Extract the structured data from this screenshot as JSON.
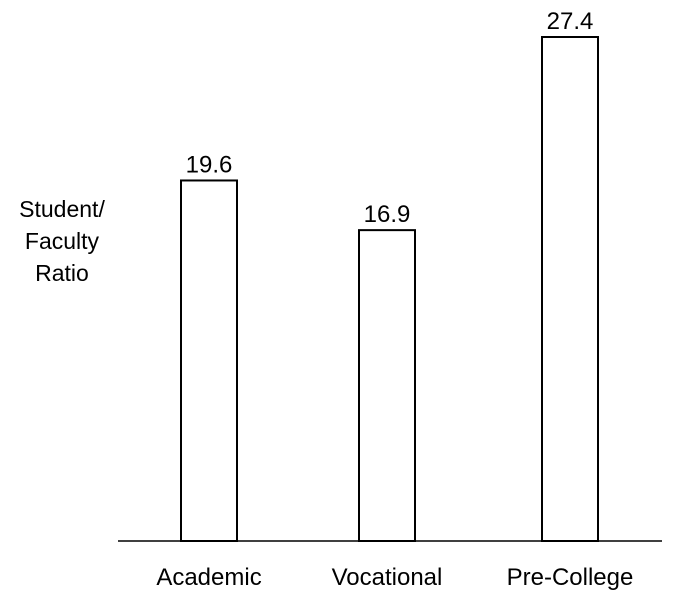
{
  "chart_data": {
    "type": "bar",
    "categories": [
      "Academic",
      "Vocational",
      "Pre-College"
    ],
    "values": [
      19.6,
      16.9,
      27.4
    ],
    "value_labels": [
      "19.6",
      "16.9",
      "27.4"
    ],
    "title": "",
    "xlabel": "",
    "ylabel_lines": [
      "Student/",
      "Faculty",
      "Ratio"
    ],
    "ylim": [
      0,
      27.4
    ],
    "grid": false,
    "legend": "none",
    "bar_fill": "#ffffff",
    "bar_stroke": "#000000"
  }
}
